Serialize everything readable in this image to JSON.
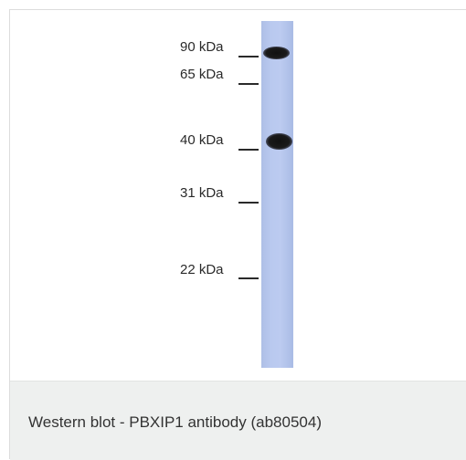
{
  "figure": {
    "markers": [
      {
        "label": "90 kDa"
      },
      {
        "label": "65 kDa"
      },
      {
        "label": "40 kDa"
      },
      {
        "label": "31 kDa"
      },
      {
        "label": "22 kDa"
      }
    ],
    "bands_at": [
      "90 kDa",
      "40 kDa"
    ],
    "lane_color": "#b9c9ef",
    "band_color": "#111111"
  },
  "caption": {
    "text": "Western blot - PBXIP1 antibody (ab80504)",
    "background": "#eef0ef"
  }
}
